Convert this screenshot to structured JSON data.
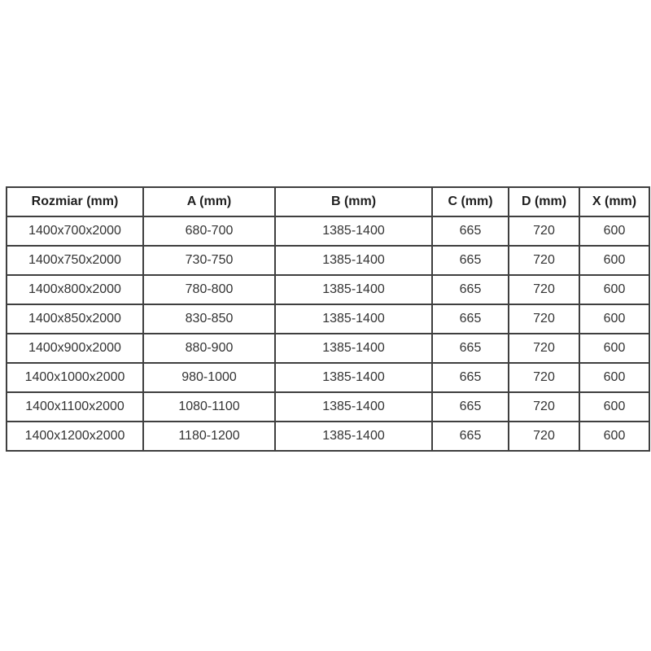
{
  "page": {
    "background": "#ffffff"
  },
  "table": {
    "border_color": "#3f3f3f",
    "header_text_color": "#1f1f1f",
    "cell_text_color": "#333333",
    "columns": [
      "Rozmiar (mm)",
      "A (mm)",
      "B (mm)",
      "C (mm)",
      "D (mm)",
      "X (mm)"
    ],
    "rows": [
      [
        "1400x700x2000",
        "680-700",
        "1385-1400",
        "665",
        "720",
        "600"
      ],
      [
        "1400x750x2000",
        "730-750",
        "1385-1400",
        "665",
        "720",
        "600"
      ],
      [
        "1400x800x2000",
        "780-800",
        "1385-1400",
        "665",
        "720",
        "600"
      ],
      [
        "1400x850x2000",
        "830-850",
        "1385-1400",
        "665",
        "720",
        "600"
      ],
      [
        "1400x900x2000",
        "880-900",
        "1385-1400",
        "665",
        "720",
        "600"
      ],
      [
        "1400x1000x2000",
        "980-1000",
        "1385-1400",
        "665",
        "720",
        "600"
      ],
      [
        "1400x1100x2000",
        "1080-1100",
        "1385-1400",
        "665",
        "720",
        "600"
      ],
      [
        "1400x1200x2000",
        "1180-1200",
        "1385-1400",
        "665",
        "720",
        "600"
      ]
    ]
  },
  "chart_data": {
    "type": "table",
    "title": "",
    "columns": [
      "Rozmiar (mm)",
      "A (mm)",
      "B (mm)",
      "C (mm)",
      "D (mm)",
      "X (mm)"
    ],
    "rows": [
      [
        "1400x700x2000",
        "680-700",
        "1385-1400",
        "665",
        "720",
        "600"
      ],
      [
        "1400x750x2000",
        "730-750",
        "1385-1400",
        "665",
        "720",
        "600"
      ],
      [
        "1400x800x2000",
        "780-800",
        "1385-1400",
        "665",
        "720",
        "600"
      ],
      [
        "1400x850x2000",
        "830-850",
        "1385-1400",
        "665",
        "720",
        "600"
      ],
      [
        "1400x900x2000",
        "880-900",
        "1385-1400",
        "665",
        "720",
        "600"
      ],
      [
        "1400x1000x2000",
        "980-1000",
        "1385-1400",
        "665",
        "720",
        "600"
      ],
      [
        "1400x1100x2000",
        "1080-1100",
        "1385-1400",
        "665",
        "720",
        "600"
      ],
      [
        "1400x1200x2000",
        "1180-1200",
        "1385-1400",
        "665",
        "720",
        "600"
      ]
    ],
    "notes": {
      "constant_columns": {
        "B (mm)": "1385-1400",
        "C (mm)": "665",
        "D (mm)": "720",
        "X (mm)": "600"
      },
      "layout": "bordered grid table, centered text, bold header row, white background"
    }
  }
}
